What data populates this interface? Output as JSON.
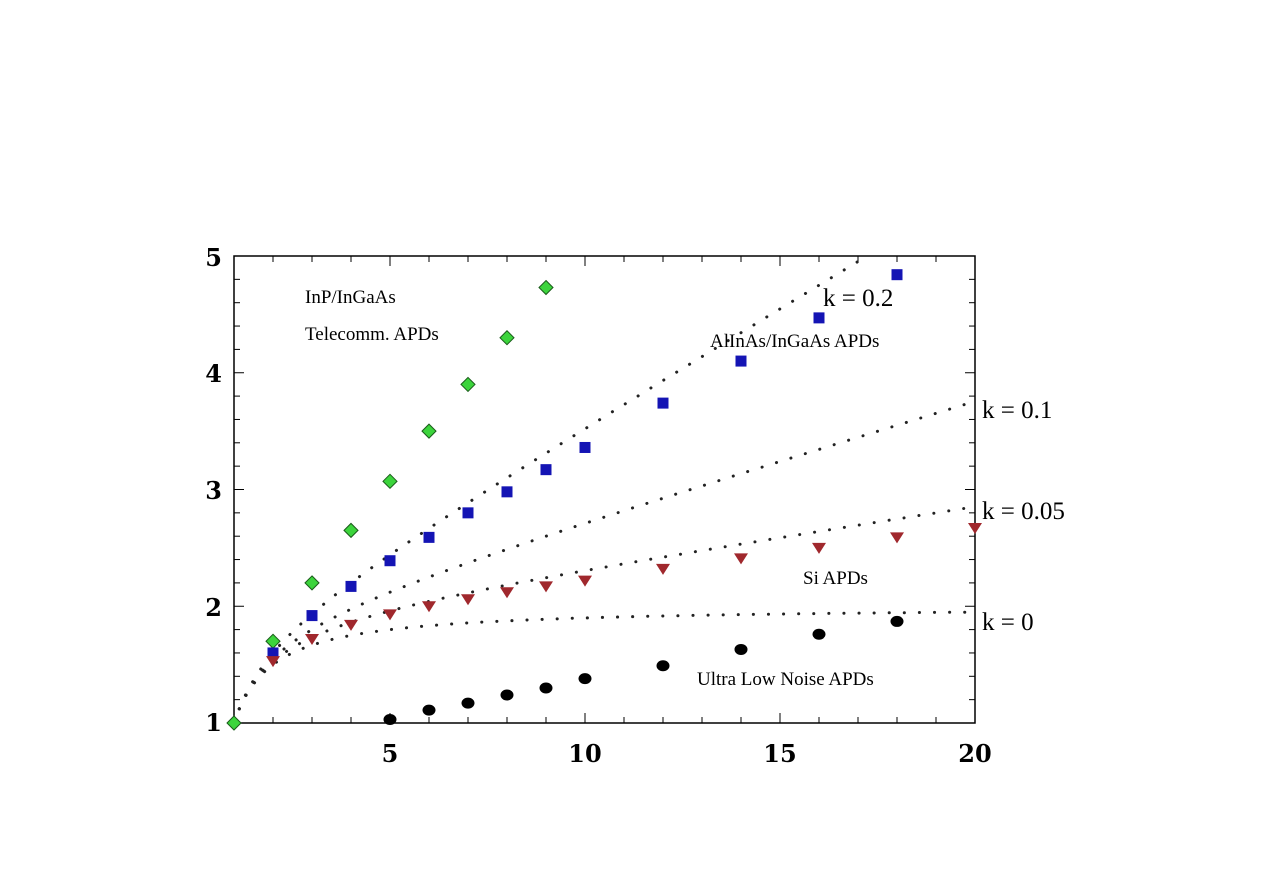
{
  "chart_data": {
    "type": "scatter",
    "xlim": [
      1,
      20
    ],
    "ylim": [
      1,
      5
    ],
    "x_ticks": [
      "5",
      "10",
      "15",
      "20"
    ],
    "y_ticks": [
      "1",
      "2",
      "3",
      "4",
      "5"
    ],
    "grid": false,
    "series": [
      {
        "name": "InP/InGaAs Telecomm. APDs",
        "marker": "diamond",
        "color": "#3cd43c",
        "x": [
          1,
          2,
          3,
          4,
          5,
          6,
          7,
          8,
          9
        ],
        "y": [
          1.0,
          1.7,
          2.2,
          2.65,
          3.07,
          3.5,
          3.9,
          4.3,
          4.73
        ]
      },
      {
        "name": "AlInAs/InGaAs APDs",
        "marker": "square",
        "color": "#1414b4",
        "x": [
          2,
          3,
          4,
          5,
          6,
          7,
          8,
          9,
          10,
          12,
          14,
          16,
          18
        ],
        "y": [
          1.6,
          1.92,
          2.17,
          2.39,
          2.59,
          2.8,
          2.98,
          3.17,
          3.36,
          3.74,
          4.1,
          4.47,
          4.84
        ]
      },
      {
        "name": "Si APDs",
        "marker": "triangle-down",
        "color": "#a0282d",
        "x": [
          2,
          3,
          4,
          5,
          6,
          7,
          8,
          9,
          10,
          12,
          14,
          16,
          18,
          20
        ],
        "y": [
          1.53,
          1.72,
          1.84,
          1.93,
          2.0,
          2.06,
          2.12,
          2.17,
          2.22,
          2.32,
          2.41,
          2.5,
          2.59,
          2.67
        ]
      },
      {
        "name": "Ultra Low Noise APDs",
        "marker": "circle",
        "color": "#000000",
        "x": [
          5,
          6,
          7,
          8,
          9,
          10,
          12,
          14,
          16,
          18
        ],
        "y": [
          1.03,
          1.11,
          1.17,
          1.24,
          1.3,
          1.38,
          1.49,
          1.63,
          1.76,
          1.87
        ]
      }
    ],
    "theory_curves": [
      {
        "k": 0.2,
        "label": "k = 0.2"
      },
      {
        "k": 0.1,
        "label": "k = 0.1"
      },
      {
        "k": 0.05,
        "label": "k = 0.05"
      },
      {
        "k": 0,
        "label": "k = 0"
      }
    ],
    "annotations": {
      "inp_line1": "InP/InGaAs",
      "inp_line2": "Telecomm. APDs",
      "alinas": "AlInAs/InGaAs APDs",
      "si": "Si APDs",
      "ultra": "Ultra Low Noise APDs"
    }
  }
}
